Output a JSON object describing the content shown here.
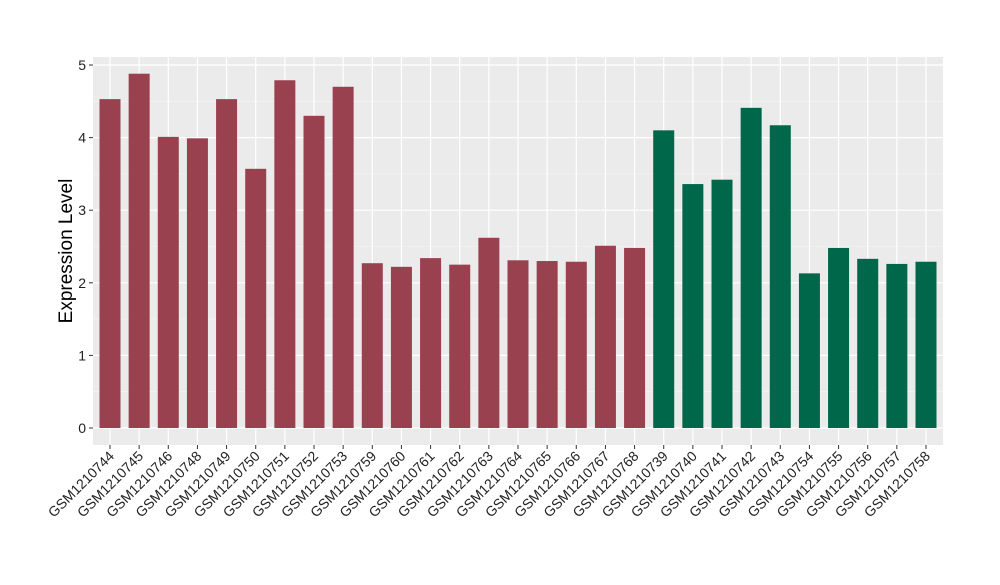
{
  "chart_data": {
    "type": "bar",
    "title": "",
    "xlabel": "",
    "ylabel": "Expression Level",
    "ylim": [
      -0.2,
      5.1
    ],
    "yticks": [
      0,
      1,
      2,
      3,
      4,
      5
    ],
    "grid": true,
    "legend": "none",
    "categories": [
      "GSM1210744",
      "GSM1210745",
      "GSM1210746",
      "GSM1210748",
      "GSM1210749",
      "GSM1210750",
      "GSM1210751",
      "GSM1210752",
      "GSM1210753",
      "GSM1210759",
      "GSM1210760",
      "GSM1210761",
      "GSM1210762",
      "GSM1210763",
      "GSM1210764",
      "GSM1210765",
      "GSM1210766",
      "GSM1210767",
      "GSM1210768",
      "GSM1210739",
      "GSM1210740",
      "GSM1210741",
      "GSM1210742",
      "GSM1210743",
      "GSM1210754",
      "GSM1210755",
      "GSM1210756",
      "GSM1210757",
      "GSM1210758"
    ],
    "values": [
      4.53,
      4.88,
      4.01,
      3.99,
      4.53,
      3.57,
      4.79,
      4.3,
      4.7,
      2.27,
      2.22,
      2.34,
      2.25,
      2.62,
      2.31,
      2.3,
      2.29,
      2.51,
      2.48,
      4.1,
      3.36,
      3.42,
      4.41,
      4.17,
      2.13,
      2.48,
      2.33,
      2.26,
      2.29
    ],
    "groups": [
      "a",
      "a",
      "a",
      "a",
      "a",
      "a",
      "a",
      "a",
      "a",
      "a",
      "a",
      "a",
      "a",
      "a",
      "a",
      "a",
      "a",
      "a",
      "a",
      "b",
      "b",
      "b",
      "b",
      "b",
      "b",
      "b",
      "b",
      "b",
      "b"
    ],
    "colors": {
      "a": "#9A4150",
      "b": "#00674A"
    }
  }
}
